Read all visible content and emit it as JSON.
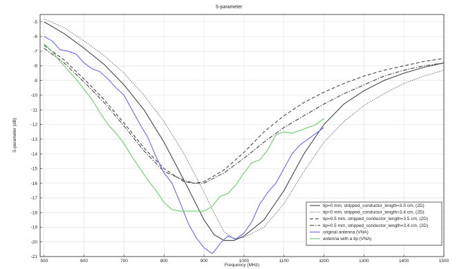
{
  "chart_data": {
    "type": "line",
    "title": "S-parameter",
    "xlabel": "Frequency (MHz)",
    "ylabel": "S-parameter (dB)",
    "xlim": [
      490,
      1500
    ],
    "ylim": [
      -21,
      -4.5
    ],
    "x_ticks": [
      500,
      600,
      700,
      800,
      900,
      1000,
      1100,
      1200,
      1300,
      1400,
      1500
    ],
    "y_ticks": [
      -5,
      -6,
      -7,
      -8,
      -9,
      -10,
      -11,
      -12,
      -13,
      -14,
      -15,
      -16,
      -17,
      -18,
      -19,
      -20,
      -21
    ],
    "grid": true,
    "legend_position": "bottom-right",
    "series": [
      {
        "name": "tip=0 mm, stripped_conductor_length=3.5 cm, (2D)",
        "color": "#444444",
        "style": "solid",
        "x": [
          500,
          550,
          600,
          650,
          700,
          750,
          800,
          850,
          900,
          925,
          950,
          975,
          1000,
          1050,
          1100,
          1150,
          1200,
          1250,
          1300,
          1350,
          1400,
          1450,
          1500
        ],
        "y": [
          -5.0,
          -5.8,
          -6.8,
          -7.9,
          -9.3,
          -11.0,
          -13.2,
          -15.8,
          -18.5,
          -19.5,
          -19.9,
          -19.9,
          -19.6,
          -18.5,
          -16.5,
          -14.0,
          -12.0,
          -10.6,
          -9.7,
          -9.0,
          -8.5,
          -8.1,
          -7.8
        ]
      },
      {
        "name": "tip=0 mm, stripped_conductor_length=3.4 cm, (2D)",
        "color": "#444444",
        "style": "dotted",
        "x": [
          500,
          550,
          600,
          650,
          700,
          750,
          800,
          850,
          900,
          925,
          950,
          975,
          1000,
          1050,
          1100,
          1150,
          1200,
          1250,
          1300,
          1350,
          1400,
          1450,
          1500
        ],
        "y": [
          -4.8,
          -5.4,
          -6.3,
          -7.3,
          -8.5,
          -10.0,
          -11.8,
          -14.0,
          -16.6,
          -18.0,
          -19.3,
          -19.8,
          -19.7,
          -19.0,
          -17.4,
          -15.2,
          -13.2,
          -11.8,
          -10.7,
          -9.9,
          -9.2,
          -8.7,
          -8.3
        ]
      },
      {
        "name": "tip=0.5 mm, stripped_conductor_length=3.5 cm, (2D)",
        "color": "#444444",
        "style": "dashed",
        "x": [
          500,
          550,
          600,
          650,
          700,
          750,
          800,
          850,
          875,
          900,
          950,
          1000,
          1050,
          1100,
          1150,
          1200,
          1250,
          1300,
          1350,
          1400,
          1450,
          1500
        ],
        "y": [
          -6.6,
          -7.6,
          -8.9,
          -10.3,
          -11.9,
          -13.6,
          -15.0,
          -15.9,
          -16.0,
          -15.9,
          -15.1,
          -13.9,
          -12.5,
          -11.4,
          -10.5,
          -9.8,
          -9.2,
          -8.7,
          -8.3,
          -8.0,
          -7.7,
          -7.5
        ]
      },
      {
        "name": "tip=0.5 mm, stripped_conductor_length=3.4 cm, (2D)",
        "color": "#444444",
        "style": "dashdot",
        "x": [
          500,
          550,
          600,
          650,
          700,
          750,
          800,
          850,
          875,
          900,
          950,
          1000,
          1050,
          1100,
          1150,
          1200,
          1250,
          1300,
          1350,
          1400,
          1450,
          1500
        ],
        "y": [
          -6.8,
          -7.8,
          -9.1,
          -10.5,
          -12.1,
          -13.8,
          -15.2,
          -15.8,
          -16.0,
          -16.0,
          -15.3,
          -14.3,
          -13.2,
          -12.2,
          -11.4,
          -10.6,
          -9.9,
          -9.3,
          -8.7,
          -8.3,
          -8.0,
          -7.8
        ]
      },
      {
        "name": "original antenna (VNA)",
        "color": "#6666ee",
        "style": "solid",
        "x": [
          500,
          520,
          540,
          560,
          580,
          600,
          620,
          640,
          660,
          680,
          700,
          720,
          740,
          760,
          780,
          800,
          820,
          840,
          860,
          880,
          900,
          910,
          920,
          930,
          940,
          960,
          980,
          1000,
          1020,
          1040,
          1060,
          1080,
          1100,
          1120,
          1140,
          1160,
          1180,
          1200
        ],
        "y": [
          -6.0,
          -6.3,
          -6.9,
          -7.0,
          -7.2,
          -7.8,
          -8.2,
          -8.4,
          -8.9,
          -9.5,
          -10.0,
          -11.0,
          -12.0,
          -12.9,
          -14.2,
          -15.3,
          -16.0,
          -17.3,
          -18.7,
          -19.7,
          -20.4,
          -20.6,
          -20.8,
          -20.5,
          -20.1,
          -19.6,
          -19.8,
          -19.4,
          -18.6,
          -17.4,
          -16.6,
          -16.0,
          -15.0,
          -14.0,
          -13.4,
          -13.0,
          -12.6,
          -12.2
        ]
      },
      {
        "name": "antenna with a tip (VNA)",
        "color": "#66cc66",
        "style": "solid",
        "x": [
          500,
          520,
          540,
          560,
          580,
          600,
          620,
          640,
          660,
          680,
          700,
          720,
          740,
          760,
          780,
          800,
          820,
          840,
          860,
          880,
          900,
          920,
          940,
          960,
          980,
          1000,
          1020,
          1040,
          1060,
          1080,
          1100,
          1120,
          1140,
          1160,
          1180,
          1200
        ],
        "y": [
          -6.5,
          -7.0,
          -7.7,
          -8.3,
          -8.9,
          -9.6,
          -10.3,
          -11.2,
          -12.0,
          -12.6,
          -13.3,
          -14.2,
          -15.0,
          -15.8,
          -16.5,
          -17.3,
          -17.8,
          -17.9,
          -17.9,
          -17.9,
          -17.9,
          -17.6,
          -16.9,
          -16.7,
          -16.1,
          -15.3,
          -14.6,
          -14.4,
          -13.7,
          -12.7,
          -12.5,
          -12.6,
          -12.4,
          -12.2,
          -12.0,
          -11.6
        ]
      }
    ]
  }
}
